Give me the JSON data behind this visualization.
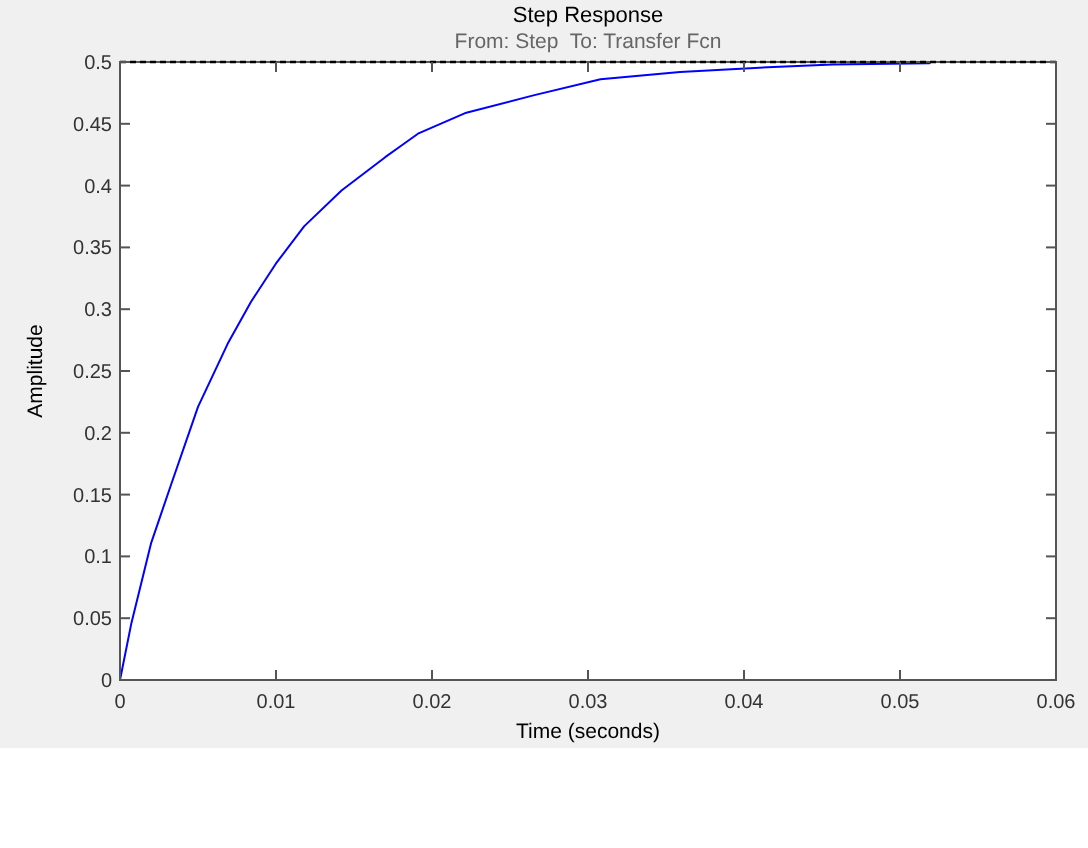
{
  "chart_data": {
    "type": "line",
    "title": "Step Response",
    "subtitle": "From: Step  To: Transfer Fcn",
    "xlabel": "Time (seconds)",
    "ylabel": "Amplitude",
    "x": [
      0,
      0.00073,
      0.002,
      0.0033,
      0.005,
      0.0069,
      0.0084,
      0.01,
      0.0118,
      0.0142,
      0.017,
      0.018,
      0.0191,
      0.0222,
      0.0265,
      0.0308,
      0.0359,
      0.0419,
      0.0457,
      0.0519
    ],
    "series": [
      {
        "color": "#0000ff",
        "values": [
          0,
          0.046,
          0.111,
          0.159,
          0.221,
          0.272,
          0.306,
          0.337,
          0.367,
          0.396,
          0.423,
          0.432,
          0.442,
          0.459,
          0.473,
          0.486,
          0.492,
          0.496,
          0.498,
          0.499
        ]
      }
    ],
    "xlim": [
      0,
      0.06
    ],
    "xticks": [
      0,
      0.01,
      0.02,
      0.03,
      0.04,
      0.05,
      0.06
    ],
    "ylim": [
      0,
      0.5
    ],
    "yticks": [
      0,
      0.05,
      0.1,
      0.15,
      0.2,
      0.25,
      0.3,
      0.35,
      0.4,
      0.45,
      0.5
    ],
    "ref_lines": [
      {
        "axis": "y",
        "value": 0.5,
        "color": "#000000",
        "line_style": "dashed"
      }
    ],
    "grid": false,
    "line_style": "solid",
    "marker": "none"
  }
}
